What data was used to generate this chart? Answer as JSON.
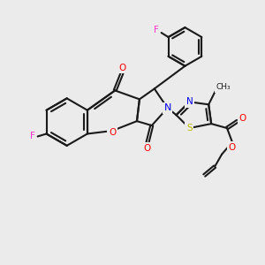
{
  "bg_color": "#ebebeb",
  "bond_color": "#1a1a1a",
  "colors": {
    "F": "#ff33cc",
    "O": "#ff0000",
    "N": "#0000ee",
    "S": "#bbbb00",
    "C": "#1a1a1a"
  }
}
